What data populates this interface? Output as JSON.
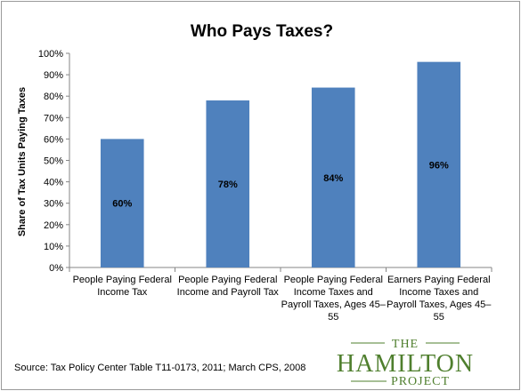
{
  "chart_data": {
    "type": "bar",
    "title": "Who Pays Taxes?",
    "ylabel": "Share of Tax Units Paying Taxes",
    "xlabel": "",
    "ylim": [
      0,
      100
    ],
    "yticks": [
      "0%",
      "10%",
      "20%",
      "30%",
      "40%",
      "50%",
      "60%",
      "70%",
      "80%",
      "90%",
      "100%"
    ],
    "categories": [
      [
        "People Paying Federal",
        "Income Tax"
      ],
      [
        "People Paying Federal",
        "Income and Payroll Tax"
      ],
      [
        "People Paying Federal",
        "Income Taxes and",
        "Payroll Taxes, Ages 45–",
        "55"
      ],
      [
        "Earners Paying Federal",
        "Income Taxes and",
        "Payroll Taxes, Ages 45–",
        "55"
      ]
    ],
    "values": [
      60,
      78,
      84,
      96
    ],
    "data_labels": [
      "60%",
      "78%",
      "84%",
      "96%"
    ],
    "bar_color": "#4f81bd",
    "grid": false,
    "legend": "none"
  },
  "source": "Source: Tax Policy Center Table T11-0173, 2011; March CPS, 2008",
  "logo": {
    "line1": "THE",
    "line2": "HAMILTON",
    "line3": "PROJECT",
    "color": "#4f7f2e"
  }
}
